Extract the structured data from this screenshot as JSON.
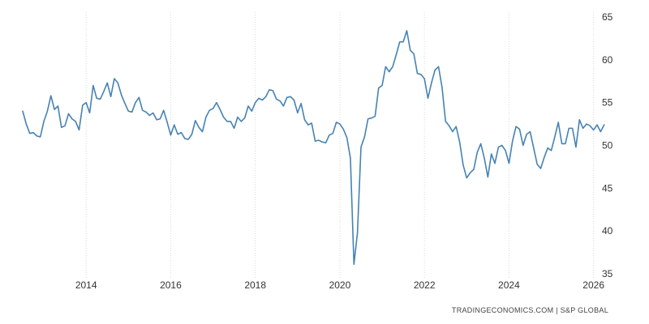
{
  "source": "TRADINGECONOMICS.COM | S&P GLOBAL",
  "colors": {
    "line": "#4682b4",
    "grid": "#d9d9d9",
    "tick_text": "#333333",
    "background": "#ffffff"
  },
  "chart_data": {
    "type": "line",
    "title": "",
    "xlabel": "",
    "ylabel": "",
    "grid": "vertical",
    "legend": "none",
    "y_axis_side": "right",
    "x_range": [
      "2012-07",
      "2026-02"
    ],
    "ylim": [
      35,
      65
    ],
    "x_ticks": [
      "2014",
      "2016",
      "2018",
      "2020",
      "2022",
      "2024",
      "2026"
    ],
    "y_ticks": [
      "35",
      "40",
      "45",
      "50",
      "55",
      "60",
      "65"
    ],
    "series": [
      {
        "name": "",
        "color": "#4682b4",
        "points": [
          [
            "2012-07",
            54.0
          ],
          [
            "2012-08",
            52.5
          ],
          [
            "2012-09",
            51.4
          ],
          [
            "2012-10",
            51.5
          ],
          [
            "2012-11",
            51.1
          ],
          [
            "2012-12",
            51.0
          ],
          [
            "2013-01",
            52.8
          ],
          [
            "2013-02",
            54.0
          ],
          [
            "2013-03",
            55.8
          ],
          [
            "2013-04",
            54.2
          ],
          [
            "2013-05",
            54.6
          ],
          [
            "2013-06",
            52.1
          ],
          [
            "2013-07",
            52.3
          ],
          [
            "2013-08",
            53.7
          ],
          [
            "2013-09",
            53.1
          ],
          [
            "2013-10",
            52.8
          ],
          [
            "2013-11",
            51.8
          ],
          [
            "2013-12",
            54.7
          ],
          [
            "2014-01",
            55.0
          ],
          [
            "2014-02",
            53.8
          ],
          [
            "2014-03",
            57.0
          ],
          [
            "2014-04",
            55.5
          ],
          [
            "2014-05",
            55.4
          ],
          [
            "2014-06",
            56.3
          ],
          [
            "2014-07",
            57.3
          ],
          [
            "2014-08",
            55.7
          ],
          [
            "2014-09",
            57.8
          ],
          [
            "2014-10",
            57.3
          ],
          [
            "2014-11",
            55.9
          ],
          [
            "2014-12",
            54.9
          ],
          [
            "2015-01",
            54.0
          ],
          [
            "2015-02",
            53.9
          ],
          [
            "2015-03",
            55.0
          ],
          [
            "2015-04",
            55.6
          ],
          [
            "2015-05",
            54.1
          ],
          [
            "2015-06",
            53.9
          ],
          [
            "2015-07",
            53.5
          ],
          [
            "2015-08",
            53.8
          ],
          [
            "2015-09",
            53.0
          ],
          [
            "2015-10",
            53.1
          ],
          [
            "2015-11",
            54.1
          ],
          [
            "2015-12",
            52.7
          ],
          [
            "2016-01",
            51.2
          ],
          [
            "2016-02",
            52.4
          ],
          [
            "2016-03",
            51.3
          ],
          [
            "2016-04",
            51.5
          ],
          [
            "2016-05",
            50.8
          ],
          [
            "2016-06",
            50.7
          ],
          [
            "2016-07",
            51.3
          ],
          [
            "2016-08",
            52.9
          ],
          [
            "2016-09",
            52.1
          ],
          [
            "2016-10",
            51.6
          ],
          [
            "2016-11",
            53.3
          ],
          [
            "2016-12",
            54.1
          ],
          [
            "2017-01",
            54.3
          ],
          [
            "2017-02",
            55.0
          ],
          [
            "2017-03",
            54.2
          ],
          [
            "2017-04",
            53.3
          ],
          [
            "2017-05",
            52.8
          ],
          [
            "2017-06",
            52.8
          ],
          [
            "2017-07",
            52.0
          ],
          [
            "2017-08",
            53.3
          ],
          [
            "2017-09",
            52.8
          ],
          [
            "2017-10",
            53.2
          ],
          [
            "2017-11",
            54.6
          ],
          [
            "2017-12",
            54.0
          ],
          [
            "2018-01",
            55.0
          ],
          [
            "2018-02",
            55.5
          ],
          [
            "2018-03",
            55.3
          ],
          [
            "2018-04",
            55.7
          ],
          [
            "2018-05",
            56.5
          ],
          [
            "2018-06",
            56.4
          ],
          [
            "2018-07",
            55.4
          ],
          [
            "2018-08",
            55.2
          ],
          [
            "2018-09",
            54.6
          ],
          [
            "2018-10",
            55.6
          ],
          [
            "2018-11",
            55.7
          ],
          [
            "2018-12",
            55.3
          ],
          [
            "2019-01",
            53.8
          ],
          [
            "2019-02",
            54.9
          ],
          [
            "2019-03",
            53.0
          ],
          [
            "2019-04",
            52.4
          ],
          [
            "2019-05",
            52.6
          ],
          [
            "2019-06",
            50.5
          ],
          [
            "2019-07",
            50.6
          ],
          [
            "2019-08",
            50.4
          ],
          [
            "2019-09",
            50.3
          ],
          [
            "2019-10",
            51.2
          ],
          [
            "2019-11",
            51.4
          ],
          [
            "2019-12",
            52.7
          ],
          [
            "2020-01",
            52.5
          ],
          [
            "2020-02",
            51.9
          ],
          [
            "2020-03",
            50.9
          ],
          [
            "2020-04",
            48.5
          ],
          [
            "2020-05",
            36.1
          ],
          [
            "2020-06",
            39.8
          ],
          [
            "2020-07",
            49.8
          ],
          [
            "2020-08",
            51.0
          ],
          [
            "2020-09",
            53.1
          ],
          [
            "2020-10",
            53.2
          ],
          [
            "2020-11",
            53.4
          ],
          [
            "2020-12",
            56.7
          ],
          [
            "2021-01",
            57.0
          ],
          [
            "2021-02",
            59.2
          ],
          [
            "2021-03",
            58.6
          ],
          [
            "2021-04",
            59.2
          ],
          [
            "2021-05",
            60.6
          ],
          [
            "2021-06",
            62.1
          ],
          [
            "2021-07",
            62.1
          ],
          [
            "2021-08",
            63.4
          ],
          [
            "2021-09",
            61.1
          ],
          [
            "2021-10",
            60.7
          ],
          [
            "2021-11",
            58.4
          ],
          [
            "2021-12",
            58.3
          ],
          [
            "2022-01",
            57.8
          ],
          [
            "2022-02",
            55.5
          ],
          [
            "2022-03",
            57.3
          ],
          [
            "2022-04",
            58.8
          ],
          [
            "2022-05",
            59.2
          ],
          [
            "2022-06",
            56.8
          ],
          [
            "2022-07",
            52.8
          ],
          [
            "2022-08",
            52.3
          ],
          [
            "2022-09",
            51.6
          ],
          [
            "2022-10",
            52.2
          ],
          [
            "2022-11",
            50.4
          ],
          [
            "2022-12",
            47.7
          ],
          [
            "2023-01",
            46.2
          ],
          [
            "2023-02",
            46.8
          ],
          [
            "2023-03",
            47.2
          ],
          [
            "2023-04",
            49.2
          ],
          [
            "2023-05",
            50.2
          ],
          [
            "2023-06",
            48.5
          ],
          [
            "2023-07",
            46.3
          ],
          [
            "2023-08",
            49.0
          ],
          [
            "2023-09",
            47.9
          ],
          [
            "2023-10",
            49.8
          ],
          [
            "2023-11",
            50.0
          ],
          [
            "2023-12",
            49.4
          ],
          [
            "2024-01",
            47.9
          ],
          [
            "2024-02",
            50.5
          ],
          [
            "2024-03",
            52.2
          ],
          [
            "2024-04",
            51.9
          ],
          [
            "2024-05",
            50.0
          ],
          [
            "2024-06",
            51.3
          ],
          [
            "2024-07",
            51.6
          ],
          [
            "2024-08",
            49.7
          ],
          [
            "2024-09",
            47.8
          ],
          [
            "2024-10",
            47.3
          ],
          [
            "2024-11",
            48.6
          ],
          [
            "2024-12",
            49.7
          ],
          [
            "2025-01",
            49.4
          ],
          [
            "2025-02",
            51.0
          ],
          [
            "2025-03",
            52.7
          ],
          [
            "2025-04",
            50.2
          ],
          [
            "2025-05",
            50.2
          ],
          [
            "2025-06",
            52.0
          ],
          [
            "2025-07",
            52.0
          ],
          [
            "2025-08",
            49.8
          ],
          [
            "2025-09",
            53.0
          ],
          [
            "2025-10",
            52.0
          ],
          [
            "2025-11",
            52.5
          ],
          [
            "2025-12",
            52.3
          ],
          [
            "2026-01",
            51.8
          ],
          [
            "2026-02",
            52.4
          ],
          [
            "2026-03",
            51.6
          ],
          [
            "2026-04",
            52.4
          ]
        ]
      }
    ]
  }
}
